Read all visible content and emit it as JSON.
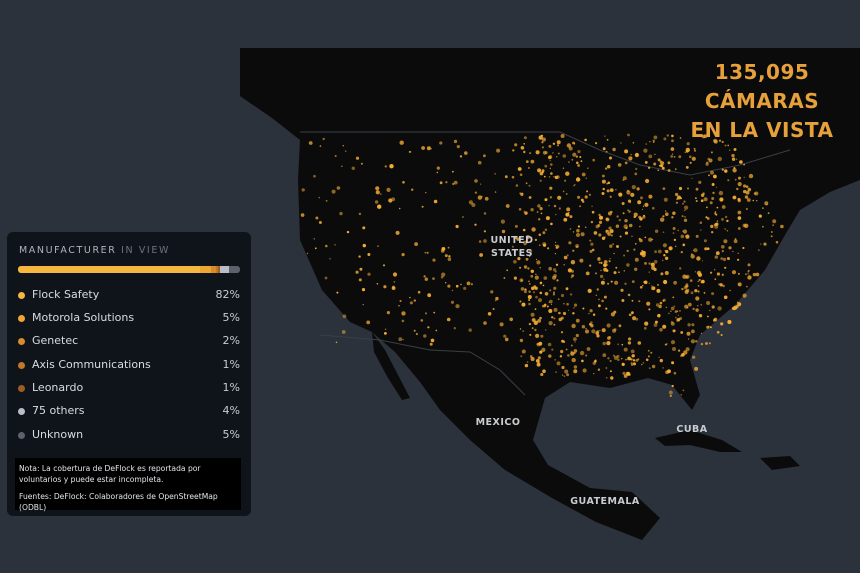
{
  "header": {
    "lines": [
      "135,095",
      "CÁMARAS",
      "EN LA VISTA"
    ]
  },
  "map_labels": [
    {
      "text": "UNITED",
      "x": 512,
      "y": 243
    },
    {
      "text": "STATES",
      "x": 512,
      "y": 256
    },
    {
      "text": "MEXICO",
      "x": 498,
      "y": 425
    },
    {
      "text": "CUBA",
      "x": 692,
      "y": 432
    },
    {
      "text": "GUATEMALA",
      "x": 605,
      "y": 504
    }
  ],
  "legend": {
    "title": "MANUFACTURER",
    "title_suffix": "IN VIEW",
    "items": [
      {
        "name": "Flock Safety",
        "value": 82,
        "value_label": "82%",
        "color": "#f5b73e"
      },
      {
        "name": "Motorola Solutions",
        "value": 5,
        "value_label": "5%",
        "color": "#eea534"
      },
      {
        "name": "Genetec",
        "value": 2,
        "value_label": "2%",
        "color": "#d98a2a"
      },
      {
        "name": "Axis Communications",
        "value": 1,
        "value_label": "1%",
        "color": "#c2772a"
      },
      {
        "name": "Leonardo",
        "value": 1,
        "value_label": "1%",
        "color": "#9c5e22"
      },
      {
        "name": "75 others",
        "value": 4,
        "value_label": "4%",
        "color": "#b9bec6"
      },
      {
        "name": "Unknown",
        "value": 5,
        "value_label": "5%",
        "color": "#5b626b"
      }
    ],
    "note": "Nota: La cobertura de DeFlock es reportada por voluntarios y puede estar incompleta.",
    "sources": "Fuentes: DeFlock: Colaboradores de OpenStreetMap (ODBL)"
  }
}
